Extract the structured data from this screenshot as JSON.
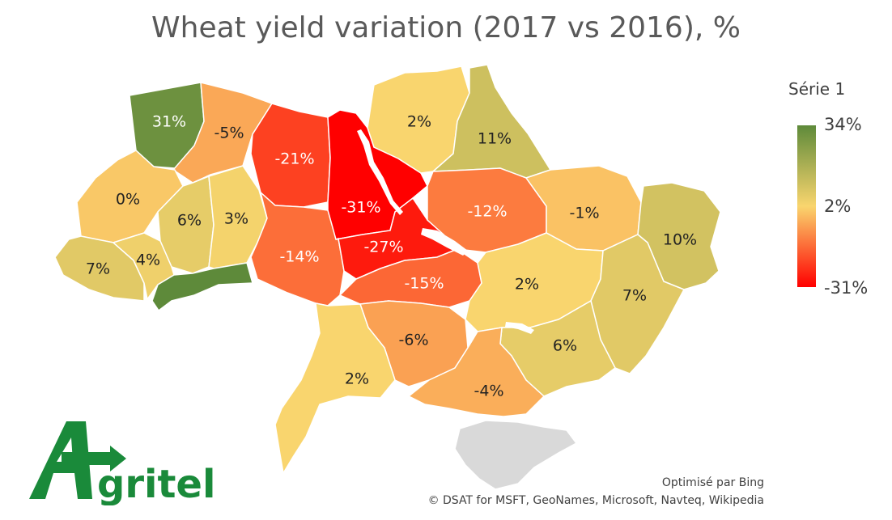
{
  "chart_data": {
    "type": "choropleth",
    "title": "Wheat yield variation (2017 vs 2016), %",
    "legend": {
      "title": "Série 1",
      "max_label": "34%",
      "mid_label": "2%",
      "min_label": "-31%",
      "max": 34,
      "mid": 2,
      "min": -31,
      "colors": {
        "high": "#5e8a3a",
        "mid": "#f9d56e",
        "low": "#ff0000"
      },
      "placement": "right"
    },
    "regions": [
      {
        "label": "31%",
        "value": 31
      },
      {
        "label": "-5%",
        "value": -5
      },
      {
        "label": "0%",
        "value": 0
      },
      {
        "label": "6%",
        "value": 6
      },
      {
        "label": "3%",
        "value": 3
      },
      {
        "label": "7%",
        "value": 7
      },
      {
        "label": "4%",
        "value": 4
      },
      {
        "label": "",
        "value": 34
      },
      {
        "label": "-21%",
        "value": -21
      },
      {
        "label": "-14%",
        "value": -14
      },
      {
        "label": "-31%",
        "value": -31
      },
      {
        "label": "-27%",
        "value": -27
      },
      {
        "label": "-15%",
        "value": -15
      },
      {
        "label": "2%",
        "value": 2
      },
      {
        "label": "11%",
        "value": 11
      },
      {
        "label": "-12%",
        "value": -12
      },
      {
        "label": "-1%",
        "value": -1
      },
      {
        "label": "10%",
        "value": 10
      },
      {
        "label": "2%",
        "value": 2
      },
      {
        "label": "7%",
        "value": 7
      },
      {
        "label": "6%",
        "value": 6
      },
      {
        "label": "-6%",
        "value": -6
      },
      {
        "label": "-4%",
        "value": -4
      },
      {
        "label": "2%",
        "value": 2
      }
    ]
  },
  "credits": {
    "bing": "Optimisé par Bing",
    "sources": "© DSAT for MSFT, GeoNames, Microsoft, Navteq, Wikipedia"
  },
  "logo": {
    "text": "gritel",
    "initial": "A",
    "color": "#1a8a3a"
  }
}
